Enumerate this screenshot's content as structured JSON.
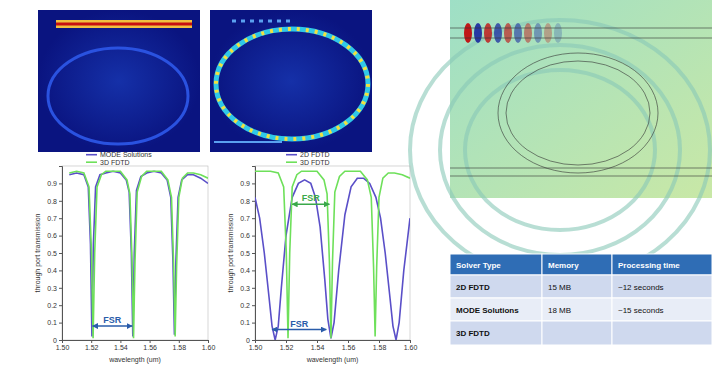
{
  "chart_data": [
    {
      "type": "line",
      "legend": "top",
      "grid": false,
      "x_label": "wavelength (um)",
      "y_label": "through port transmission",
      "xlim": [
        1.5,
        1.6
      ],
      "xticks": [
        {
          "value": 1.5,
          "label": "1.50"
        },
        {
          "value": 1.52,
          "label": "1.52"
        },
        {
          "value": 1.54,
          "label": "1.54"
        },
        {
          "value": 1.56,
          "label": "1.56"
        },
        {
          "value": 1.58,
          "label": "1.58"
        },
        {
          "value": 1.6,
          "label": "1.60"
        }
      ],
      "ylim": [
        0,
        1
      ],
      "yticks": [
        0,
        0.1,
        0.2,
        0.3,
        0.4,
        0.5,
        0.6,
        0.7,
        0.8,
        0.9
      ],
      "series": [
        {
          "name": "MODE Solutions",
          "color": "#5a4fc8",
          "x": [
            1.505,
            1.51,
            1.515,
            1.518,
            1.5195,
            1.5205,
            1.5215,
            1.523,
            1.526,
            1.53,
            1.535,
            1.54,
            1.544,
            1.546,
            1.5475,
            1.5485,
            1.5495,
            1.551,
            1.554,
            1.558,
            1.563,
            1.568,
            1.572,
            1.5745,
            1.576,
            1.577,
            1.578,
            1.5795,
            1.582,
            1.586,
            1.59,
            1.595,
            1.6
          ],
          "values": [
            0.95,
            0.96,
            0.95,
            0.88,
            0.55,
            0.02,
            0.55,
            0.88,
            0.95,
            0.96,
            0.97,
            0.96,
            0.92,
            0.85,
            0.5,
            0.02,
            0.5,
            0.86,
            0.94,
            0.96,
            0.97,
            0.96,
            0.92,
            0.82,
            0.45,
            0.03,
            0.45,
            0.82,
            0.92,
            0.95,
            0.95,
            0.93,
            0.9
          ]
        },
        {
          "name": "3D FDTD",
          "color": "#6ee05a",
          "x": [
            1.505,
            1.51,
            1.515,
            1.5185,
            1.5202,
            1.5213,
            1.5224,
            1.524,
            1.527,
            1.53,
            1.535,
            1.54,
            1.5445,
            1.5465,
            1.548,
            1.549,
            1.55,
            1.5515,
            1.5545,
            1.558,
            1.563,
            1.568,
            1.5725,
            1.575,
            1.5765,
            1.5775,
            1.5785,
            1.58,
            1.5825,
            1.586,
            1.59,
            1.595,
            1.6
          ],
          "values": [
            0.96,
            0.97,
            0.96,
            0.88,
            0.5,
            0.01,
            0.5,
            0.88,
            0.95,
            0.97,
            0.97,
            0.97,
            0.92,
            0.84,
            0.45,
            0.01,
            0.45,
            0.85,
            0.94,
            0.97,
            0.97,
            0.97,
            0.92,
            0.82,
            0.42,
            0.02,
            0.42,
            0.82,
            0.93,
            0.96,
            0.96,
            0.95,
            0.93
          ]
        }
      ],
      "annotations": [
        {
          "text": "FSR",
          "x": [
            1.521,
            1.548
          ],
          "y": 0.08,
          "color": "#2a5caa"
        }
      ]
    },
    {
      "type": "line",
      "legend": "top",
      "grid": false,
      "x_label": "wavelength (um)",
      "y_label": "through port transmission",
      "xlim": [
        1.5,
        1.6
      ],
      "xticks": [
        {
          "value": 1.5,
          "label": "1.50"
        },
        {
          "value": 1.52,
          "label": "1.52"
        },
        {
          "value": 1.54,
          "label": "1.54"
        },
        {
          "value": 1.56,
          "label": "1.56"
        },
        {
          "value": 1.58,
          "label": "1.58"
        },
        {
          "value": 1.6,
          "label": "1.60"
        }
      ],
      "ylim": [
        0,
        1
      ],
      "yticks": [
        0,
        0.1,
        0.2,
        0.3,
        0.4,
        0.5,
        0.6,
        0.7,
        0.8,
        0.9
      ],
      "series": [
        {
          "name": "2D FDTD",
          "color": "#5a4fc8",
          "x": [
            1.5,
            1.503,
            1.506,
            1.509,
            1.511,
            1.513,
            1.515,
            1.517,
            1.52,
            1.524,
            1.528,
            1.532,
            1.536,
            1.539,
            1.542,
            1.545,
            1.547,
            1.549,
            1.551,
            1.554,
            1.558,
            1.562,
            1.566,
            1.57,
            1.574,
            1.578,
            1.581,
            1.584,
            1.587,
            1.589,
            1.591,
            1.593,
            1.596,
            1.6
          ],
          "values": [
            0.82,
            0.7,
            0.5,
            0.25,
            0.08,
            0.0,
            0.08,
            0.3,
            0.6,
            0.82,
            0.9,
            0.92,
            0.9,
            0.82,
            0.65,
            0.35,
            0.12,
            0.01,
            0.1,
            0.4,
            0.72,
            0.88,
            0.93,
            0.93,
            0.9,
            0.82,
            0.7,
            0.5,
            0.25,
            0.08,
            0.0,
            0.1,
            0.4,
            0.7
          ]
        },
        {
          "name": "3D FDTD",
          "color": "#6ee05a",
          "x": [
            1.5,
            1.51,
            1.515,
            1.5185,
            1.5202,
            1.5213,
            1.5224,
            1.524,
            1.527,
            1.53,
            1.535,
            1.54,
            1.5445,
            1.5465,
            1.548,
            1.549,
            1.55,
            1.5515,
            1.5545,
            1.558,
            1.563,
            1.568,
            1.5725,
            1.575,
            1.5765,
            1.5775,
            1.5785,
            1.58,
            1.5825,
            1.586,
            1.59,
            1.595,
            1.6
          ],
          "values": [
            0.97,
            0.97,
            0.96,
            0.88,
            0.5,
            0.01,
            0.5,
            0.88,
            0.95,
            0.97,
            0.97,
            0.97,
            0.92,
            0.84,
            0.45,
            0.01,
            0.45,
            0.85,
            0.94,
            0.97,
            0.97,
            0.97,
            0.92,
            0.82,
            0.42,
            0.02,
            0.42,
            0.82,
            0.93,
            0.96,
            0.96,
            0.95,
            0.93
          ]
        }
      ],
      "annotations": [
        {
          "text": "FSR",
          "x": [
            1.524,
            1.548
          ],
          "y": 0.78,
          "color": "#3aa84a"
        },
        {
          "text": "FSR",
          "x": [
            1.511,
            1.546
          ],
          "y": 0.06,
          "color": "#2a5caa"
        }
      ]
    }
  ],
  "table": {
    "header": [
      "Solver Type",
      "Memory",
      "Processing time"
    ],
    "rows": [
      [
        "2D FDTD",
        "15 MB",
        "~12 seconds"
      ],
      [
        "MODE Solutions",
        "18 MB",
        "~15 seconds"
      ],
      [
        "3D FDTD"
      ]
    ]
  }
}
